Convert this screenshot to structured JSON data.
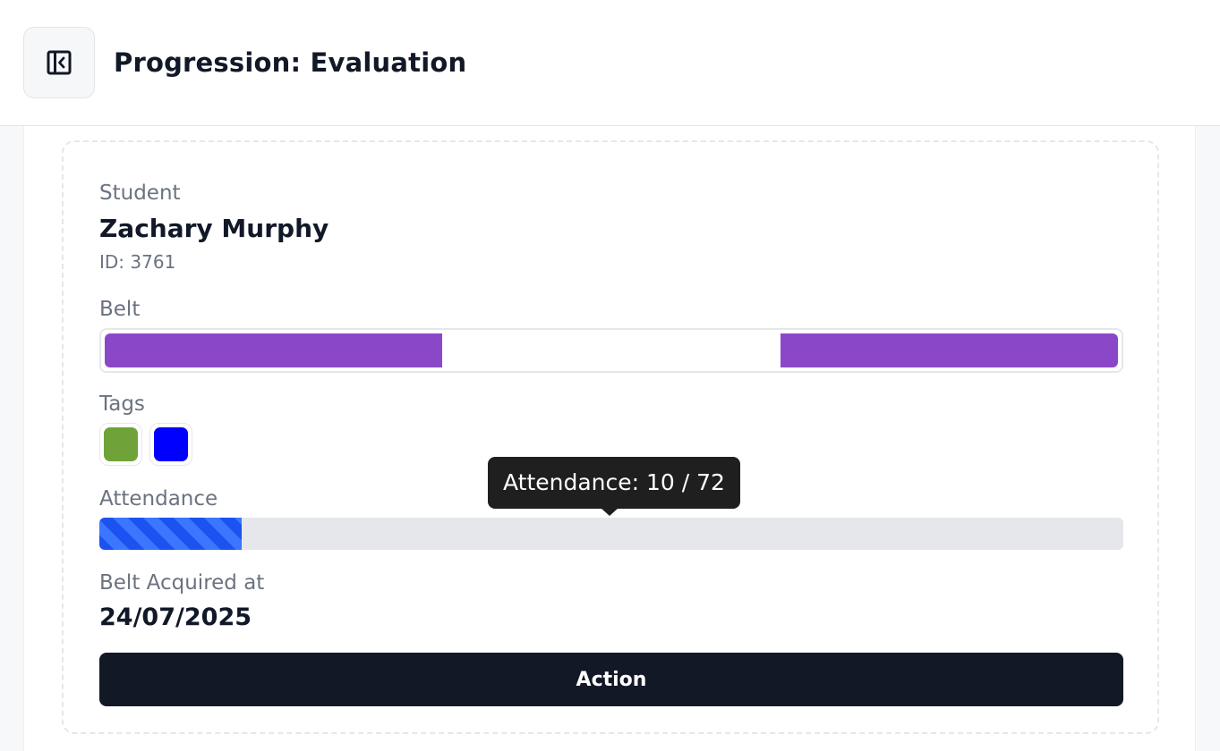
{
  "header": {
    "title": "Progression: Evaluation",
    "toggle_icon": "sidebar-collapse-icon"
  },
  "student": {
    "label": "Student",
    "name": "Zachary Murphy",
    "id_text": "ID: 3761"
  },
  "belt": {
    "label": "Belt",
    "segments": [
      {
        "color": "#8a48c9"
      },
      {
        "color": "#ffffff"
      },
      {
        "color": "#8a48c9"
      }
    ]
  },
  "tags": {
    "label": "Tags",
    "items": [
      {
        "color": "#6fa33a"
      },
      {
        "color": "#0000ff"
      }
    ]
  },
  "attendance": {
    "label": "Attendance",
    "current": 10,
    "total": 72,
    "tooltip": "Attendance: 10 / 72",
    "fill_color": "#1b52f0"
  },
  "belt_acquired": {
    "label": "Belt Acquired at",
    "date": "24/07/2025"
  },
  "action": {
    "label": "Action"
  }
}
